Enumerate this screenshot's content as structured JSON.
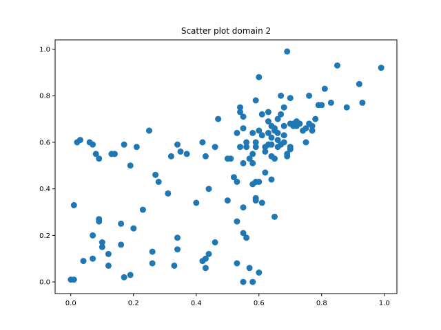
{
  "chart_data": {
    "type": "scatter",
    "title": "Scatter plot domain 2",
    "xlabel": "",
    "ylabel": "",
    "xlim": [
      -0.05,
      1.04
    ],
    "ylim": [
      -0.05,
      1.04
    ],
    "x_ticks": [
      0.0,
      0.2,
      0.4,
      0.6,
      0.8,
      1.0
    ],
    "y_ticks": [
      0.0,
      0.2,
      0.4,
      0.6,
      0.8,
      1.0
    ],
    "x_tick_labels": [
      "0.0",
      "0.2",
      "0.4",
      "0.6",
      "0.8",
      "1.0"
    ],
    "y_tick_labels": [
      "0.0",
      "0.2",
      "0.4",
      "0.6",
      "0.8",
      "1.0"
    ],
    "grid": false,
    "marker_color": "#1f77b4",
    "points": [
      [
        0.0,
        0.01
      ],
      [
        0.01,
        0.01
      ],
      [
        0.01,
        0.33
      ],
      [
        0.02,
        0.6
      ],
      [
        0.03,
        0.61
      ],
      [
        0.04,
        0.09
      ],
      [
        0.06,
        0.6
      ],
      [
        0.07,
        0.59
      ],
      [
        0.07,
        0.1
      ],
      [
        0.07,
        0.2
      ],
      [
        0.08,
        0.55
      ],
      [
        0.09,
        0.26
      ],
      [
        0.09,
        0.27
      ],
      [
        0.09,
        0.53
      ],
      [
        0.1,
        0.17
      ],
      [
        0.1,
        0.15
      ],
      [
        0.12,
        0.12
      ],
      [
        0.12,
        0.07
      ],
      [
        0.13,
        0.55
      ],
      [
        0.14,
        0.55
      ],
      [
        0.16,
        0.25
      ],
      [
        0.16,
        0.16
      ],
      [
        0.17,
        0.02
      ],
      [
        0.17,
        0.59
      ],
      [
        0.19,
        0.5
      ],
      [
        0.19,
        0.03
      ],
      [
        0.2,
        0.23
      ],
      [
        0.21,
        0.58
      ],
      [
        0.23,
        0.31
      ],
      [
        0.25,
        0.65
      ],
      [
        0.26,
        0.13
      ],
      [
        0.26,
        0.08
      ],
      [
        0.27,
        0.46
      ],
      [
        0.28,
        0.43
      ],
      [
        0.31,
        0.38
      ],
      [
        0.32,
        0.54
      ],
      [
        0.33,
        0.07
      ],
      [
        0.34,
        0.59
      ],
      [
        0.34,
        0.19
      ],
      [
        0.34,
        0.14
      ],
      [
        0.35,
        0.56
      ],
      [
        0.37,
        0.55
      ],
      [
        0.4,
        0.34
      ],
      [
        0.42,
        0.09
      ],
      [
        0.42,
        0.6
      ],
      [
        0.43,
        0.1
      ],
      [
        0.43,
        0.06
      ],
      [
        0.43,
        0.54
      ],
      [
        0.44,
        0.4
      ],
      [
        0.44,
        0.12
      ],
      [
        0.46,
        0.58
      ],
      [
        0.46,
        0.17
      ],
      [
        0.47,
        0.7
      ],
      [
        0.5,
        0.53
      ],
      [
        0.5,
        0.35
      ],
      [
        0.51,
        0.53
      ],
      [
        0.52,
        0.45
      ],
      [
        0.53,
        0.64
      ],
      [
        0.53,
        0.43
      ],
      [
        0.53,
        0.26
      ],
      [
        0.53,
        0.08
      ],
      [
        0.54,
        0.58
      ],
      [
        0.54,
        0.75
      ],
      [
        0.54,
        0.73
      ],
      [
        0.55,
        0.32
      ],
      [
        0.55,
        0.21
      ],
      [
        0.55,
        0.0
      ],
      [
        0.55,
        0.71
      ],
      [
        0.55,
        0.66
      ],
      [
        0.55,
        0.51
      ],
      [
        0.56,
        0.6
      ],
      [
        0.56,
        0.58
      ],
      [
        0.56,
        0.19
      ],
      [
        0.57,
        0.06
      ],
      [
        0.57,
        0.53
      ],
      [
        0.58,
        0.0
      ],
      [
        0.58,
        0.55
      ],
      [
        0.58,
        0.51
      ],
      [
        0.58,
        0.64
      ],
      [
        0.58,
        0.42
      ],
      [
        0.59,
        0.78
      ],
      [
        0.59,
        0.43
      ],
      [
        0.59,
        0.36
      ],
      [
        0.59,
        0.35
      ],
      [
        0.59,
        0.6
      ],
      [
        0.59,
        0.58
      ],
      [
        0.6,
        0.88
      ],
      [
        0.6,
        0.65
      ],
      [
        0.6,
        0.04
      ],
      [
        0.6,
        0.43
      ],
      [
        0.61,
        0.72
      ],
      [
        0.61,
        0.63
      ],
      [
        0.61,
        0.34
      ],
      [
        0.62,
        0.47
      ],
      [
        0.62,
        0.58
      ],
      [
        0.62,
        0.56
      ],
      [
        0.63,
        0.59
      ],
      [
        0.63,
        0.64
      ],
      [
        0.63,
        0.69
      ],
      [
        0.63,
        0.73
      ],
      [
        0.64,
        0.44
      ],
      [
        0.64,
        0.62
      ],
      [
        0.64,
        0.54
      ],
      [
        0.64,
        0.59
      ],
      [
        0.64,
        0.67
      ],
      [
        0.65,
        0.28
      ],
      [
        0.65,
        0.53
      ],
      [
        0.65,
        0.65
      ],
      [
        0.65,
        0.66
      ],
      [
        0.66,
        0.64
      ],
      [
        0.66,
        0.7
      ],
      [
        0.66,
        0.58
      ],
      [
        0.66,
        0.61
      ],
      [
        0.67,
        0.8
      ],
      [
        0.67,
        0.59
      ],
      [
        0.67,
        0.72
      ],
      [
        0.68,
        0.67
      ],
      [
        0.68,
        0.6
      ],
      [
        0.68,
        0.63
      ],
      [
        0.68,
        0.75
      ],
      [
        0.69,
        0.54
      ],
      [
        0.69,
        0.55
      ],
      [
        0.69,
        0.99
      ],
      [
        0.7,
        0.79
      ],
      [
        0.7,
        0.58
      ],
      [
        0.7,
        0.57
      ],
      [
        0.7,
        0.68
      ],
      [
        0.71,
        0.67
      ],
      [
        0.71,
        0.68
      ],
      [
        0.72,
        0.69
      ],
      [
        0.72,
        0.67
      ],
      [
        0.73,
        0.68
      ],
      [
        0.74,
        0.65
      ],
      [
        0.75,
        0.66
      ],
      [
        0.75,
        0.6
      ],
      [
        0.76,
        0.8
      ],
      [
        0.76,
        0.68
      ],
      [
        0.77,
        0.67
      ],
      [
        0.77,
        0.65
      ],
      [
        0.78,
        0.7
      ],
      [
        0.79,
        0.76
      ],
      [
        0.8,
        0.76
      ],
      [
        0.81,
        0.83
      ],
      [
        0.83,
        0.77
      ],
      [
        0.85,
        0.93
      ],
      [
        0.88,
        0.75
      ],
      [
        0.92,
        0.85
      ],
      [
        0.93,
        0.77
      ],
      [
        0.99,
        0.92
      ]
    ]
  }
}
